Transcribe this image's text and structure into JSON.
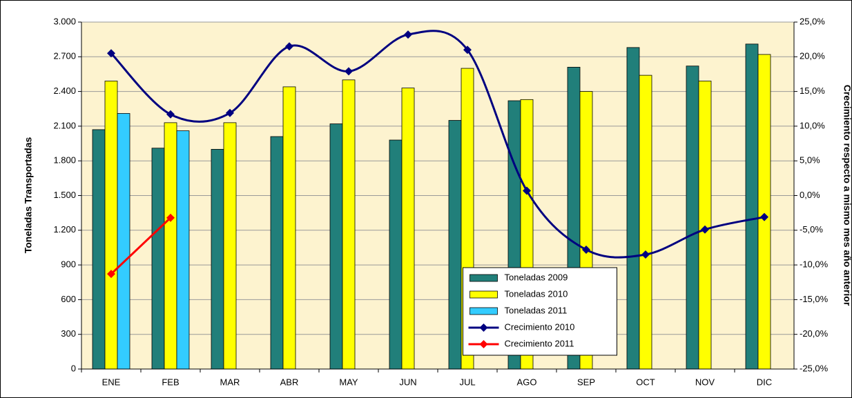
{
  "chart_data": {
    "type": "bar",
    "y_label": "Toneladas Transportadas",
    "y2_label": "Crecimiento respecto a mismo mes año anterior",
    "categories": [
      "ENE",
      "FEB",
      "MAR",
      "ABR",
      "MAY",
      "JUN",
      "JUL",
      "AGO",
      "SEP",
      "OCT",
      "NOV",
      "DIC"
    ],
    "ylim": [
      0,
      3000
    ],
    "yticks": [
      0,
      300,
      600,
      900,
      {
        "value": 1200,
        "label": "1.200"
      },
      {
        "value": 1500,
        "label": "1.500"
      },
      {
        "value": 1800,
        "label": "1.800"
      },
      {
        "value": 2100,
        "label": "2.100"
      },
      {
        "value": 2400,
        "label": "2.400"
      },
      {
        "value": 2700,
        "label": "2.700"
      },
      {
        "value": 3000,
        "label": "3.000"
      }
    ],
    "y2lim": [
      -25,
      25
    ],
    "y2ticks": [
      {
        "value": -25,
        "label": "-25,0%"
      },
      {
        "value": -20,
        "label": "-20,0%"
      },
      {
        "value": -15,
        "label": "-15,0%"
      },
      {
        "value": -10,
        "label": "-10,0%"
      },
      {
        "value": -5,
        "label": "-5,0%"
      },
      {
        "value": 0,
        "label": "0,0%"
      },
      {
        "value": 5,
        "label": "5,0%"
      },
      {
        "value": 10,
        "label": "10,0%"
      },
      {
        "value": 15,
        "label": "15,0%"
      },
      {
        "value": 20,
        "label": "20,0%"
      },
      {
        "value": 25,
        "label": "25,0%"
      }
    ],
    "grid": true,
    "legend": "bottom-center",
    "series": [
      {
        "name": "Toneladas 2009",
        "color": "#217f7a",
        "values": [
          2070,
          1910,
          1900,
          2010,
          2120,
          1980,
          2150,
          2320,
          2610,
          2780,
          2620,
          2810
        ]
      },
      {
        "name": "Toneladas 2010",
        "color": "#ffff00",
        "values": [
          2490,
          2130,
          2130,
          2440,
          2500,
          2430,
          2600,
          2330,
          2400,
          2540,
          2490,
          2720
        ]
      },
      {
        "name": "Toneladas 2011",
        "color": "#33ccff",
        "values": [
          2210,
          2060,
          null,
          null,
          null,
          null,
          null,
          null,
          null,
          null,
          null,
          null
        ]
      },
      {
        "name": "Crecimiento 2010",
        "color": "#000080",
        "type": "line",
        "smooth": true,
        "axis": "y2",
        "values": [
          20.5,
          11.7,
          11.9,
          21.5,
          17.9,
          23.2,
          21.0,
          0.7,
          -7.8,
          -8.5,
          -4.9,
          -3.1
        ]
      },
      {
        "name": "Crecimiento 2011",
        "color": "#ff0000",
        "type": "line",
        "axis": "y2",
        "values": [
          -11.3,
          -3.2,
          null,
          null,
          null,
          null,
          null,
          null,
          null,
          null,
          null,
          null
        ]
      }
    ]
  }
}
